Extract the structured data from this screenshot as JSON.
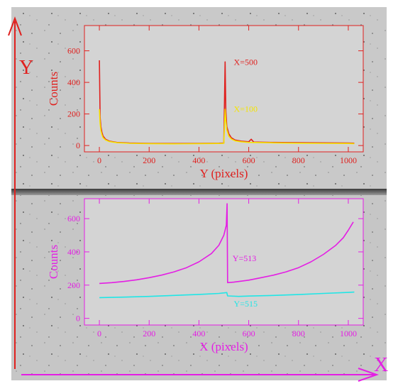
{
  "colors": {
    "background_gray": "#c8c8c8",
    "red": "#e0201e",
    "yellow": "#f5e400",
    "magenta": "#e41ee4",
    "cyan": "#20e6e6"
  },
  "frame_labels": {
    "y_axis_letter": "Y",
    "x_axis_letter": "X"
  },
  "chart_data": [
    {
      "type": "line",
      "title": "",
      "xlabel": "Y (pixels)",
      "ylabel": "Counts",
      "xlim": [
        -60,
        1060
      ],
      "ylim": [
        -40,
        760
      ],
      "x_ticks": [
        0,
        200,
        400,
        600,
        800,
        1000
      ],
      "y_ticks": [
        0,
        200,
        400,
        600
      ],
      "grid": false,
      "axis_color": "#e0201e",
      "series": [
        {
          "name": "X=500",
          "color": "#e0201e",
          "points": [
            [
              0,
              540
            ],
            [
              3,
              180
            ],
            [
              6,
              120
            ],
            [
              10,
              85
            ],
            [
              15,
              60
            ],
            [
              25,
              40
            ],
            [
              40,
              28
            ],
            [
              70,
              20
            ],
            [
              120,
              16
            ],
            [
              200,
              14
            ],
            [
              300,
              13
            ],
            [
              400,
              14
            ],
            [
              480,
              15
            ],
            [
              500,
              16
            ],
            [
              505,
              530
            ],
            [
              508,
              220
            ],
            [
              512,
              120
            ],
            [
              520,
              75
            ],
            [
              530,
              50
            ],
            [
              545,
              35
            ],
            [
              570,
              28
            ],
            [
              600,
              24
            ],
            [
              610,
              40
            ],
            [
              620,
              22
            ],
            [
              700,
              20
            ],
            [
              800,
              18
            ],
            [
              900,
              17
            ],
            [
              1000,
              16
            ],
            [
              1024,
              15
            ]
          ]
        },
        {
          "name": "X=100",
          "color": "#f5e400",
          "points": [
            [
              0,
              230
            ],
            [
              3,
              140
            ],
            [
              6,
              95
            ],
            [
              10,
              70
            ],
            [
              15,
              50
            ],
            [
              25,
              35
            ],
            [
              40,
              25
            ],
            [
              70,
              18
            ],
            [
              120,
              14
            ],
            [
              200,
              12
            ],
            [
              300,
              11
            ],
            [
              400,
              12
            ],
            [
              480,
              13
            ],
            [
              500,
              14
            ],
            [
              505,
              230
            ],
            [
              508,
              160
            ],
            [
              512,
              100
            ],
            [
              520,
              60
            ],
            [
              530,
              42
            ],
            [
              545,
              30
            ],
            [
              570,
              24
            ],
            [
              600,
              20
            ],
            [
              700,
              17
            ],
            [
              800,
              15
            ],
            [
              900,
              14
            ],
            [
              1000,
              13
            ],
            [
              1024,
              12
            ]
          ]
        }
      ],
      "annotations": [
        {
          "text": "X=500",
          "x": 540,
          "y": 510,
          "color": "#e0201e"
        },
        {
          "text": "X=100",
          "x": 540,
          "y": 215,
          "color": "#f5e400"
        }
      ]
    },
    {
      "type": "line",
      "title": "",
      "xlabel": "X (pixels)",
      "ylabel": "Counts",
      "xlim": [
        -60,
        1060
      ],
      "ylim": [
        -40,
        720
      ],
      "x_ticks": [
        0,
        200,
        400,
        600,
        800,
        1000
      ],
      "y_ticks": [
        0,
        200,
        400,
        600
      ],
      "grid": false,
      "axis_color": "#e41ee4",
      "series": [
        {
          "name": "Y=513",
          "color": "#e41ee4",
          "points": [
            [
              0,
              210
            ],
            [
              50,
              215
            ],
            [
              100,
              222
            ],
            [
              150,
              232
            ],
            [
              200,
              245
            ],
            [
              250,
              260
            ],
            [
              300,
              280
            ],
            [
              350,
              305
            ],
            [
              400,
              340
            ],
            [
              450,
              390
            ],
            [
              480,
              440
            ],
            [
              500,
              500
            ],
            [
              510,
              560
            ],
            [
              513,
              690
            ],
            [
              515,
              215
            ],
            [
              540,
              218
            ],
            [
              600,
              230
            ],
            [
              650,
              245
            ],
            [
              700,
              260
            ],
            [
              750,
              280
            ],
            [
              800,
              305
            ],
            [
              850,
              340
            ],
            [
              900,
              385
            ],
            [
              950,
              440
            ],
            [
              980,
              485
            ],
            [
              1000,
              530
            ],
            [
              1020,
              580
            ]
          ]
        },
        {
          "name": "Y=515",
          "color": "#20e6e6",
          "points": [
            [
              0,
              125
            ],
            [
              100,
              128
            ],
            [
              200,
              132
            ],
            [
              300,
              138
            ],
            [
              400,
              144
            ],
            [
              480,
              150
            ],
            [
              512,
              155
            ],
            [
              515,
              135
            ],
            [
              560,
              132
            ],
            [
              600,
              134
            ],
            [
              700,
              138
            ],
            [
              800,
              143
            ],
            [
              900,
              150
            ],
            [
              1000,
              156
            ],
            [
              1024,
              158
            ]
          ]
        }
      ],
      "annotations": [
        {
          "text": "Y=513",
          "x": 535,
          "y": 345,
          "color": "#e41ee4"
        },
        {
          "text": "Y=515",
          "x": 540,
          "y": 70,
          "color": "#20e6e6"
        }
      ]
    }
  ]
}
